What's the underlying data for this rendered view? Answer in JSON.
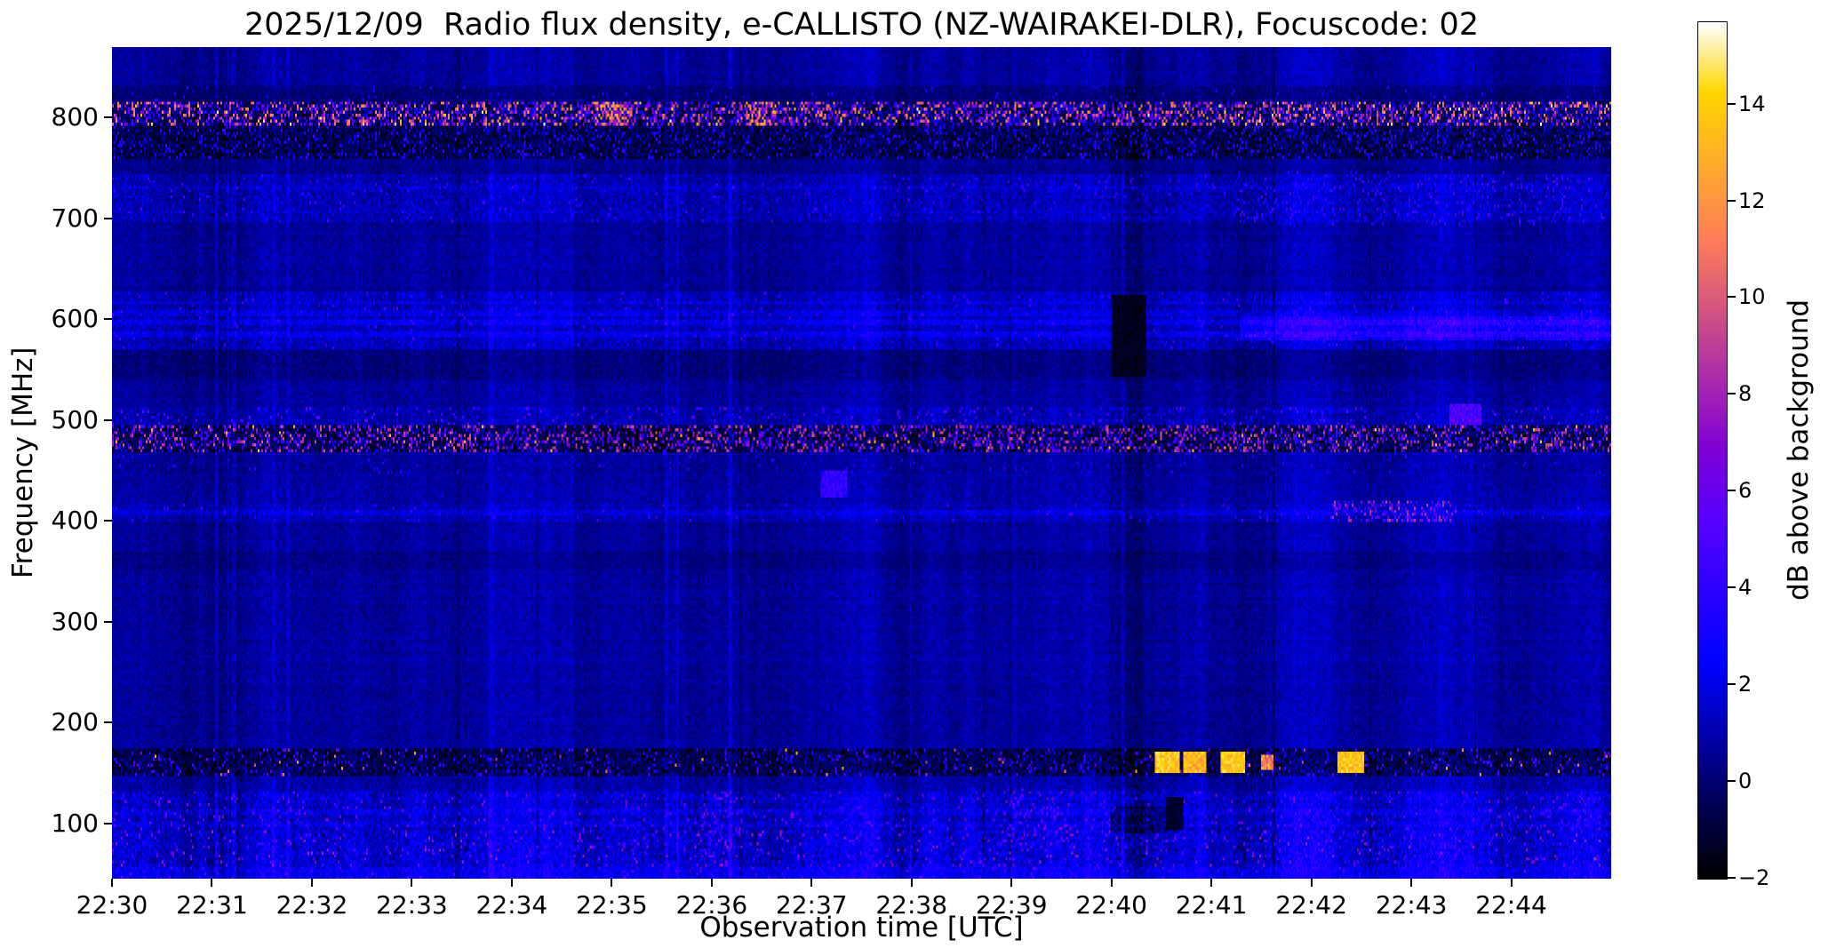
{
  "chart_data": {
    "type": "heatmap",
    "title": "2025/12/09  Radio flux density, e-CALLISTO (NZ-WAIRAKEI-DLR), Focuscode: 02",
    "xlabel": "Observation time [UTC]",
    "ylabel": "Frequency [MHz]",
    "x_range_minutes": [
      0,
      15
    ],
    "x_start_label": "22:30",
    "x_ticks": [
      {
        "label": "22:30",
        "t": 0
      },
      {
        "label": "22:31",
        "t": 1
      },
      {
        "label": "22:32",
        "t": 2
      },
      {
        "label": "22:33",
        "t": 3
      },
      {
        "label": "22:34",
        "t": 4
      },
      {
        "label": "22:35",
        "t": 5
      },
      {
        "label": "22:36",
        "t": 6
      },
      {
        "label": "22:37",
        "t": 7
      },
      {
        "label": "22:38",
        "t": 8
      },
      {
        "label": "22:39",
        "t": 9
      },
      {
        "label": "22:40",
        "t": 10
      },
      {
        "label": "22:41",
        "t": 11
      },
      {
        "label": "22:42",
        "t": 12
      },
      {
        "label": "22:43",
        "t": 13
      },
      {
        "label": "22:44",
        "t": 14
      }
    ],
    "y_range_mhz": [
      45,
      870
    ],
    "y_ticks": [
      {
        "label": "800",
        "f": 800
      },
      {
        "label": "700",
        "f": 700
      },
      {
        "label": "600",
        "f": 600
      },
      {
        "label": "500",
        "f": 500
      },
      {
        "label": "400",
        "f": 400
      },
      {
        "label": "300",
        "f": 300
      },
      {
        "label": "200",
        "f": 200
      },
      {
        "label": "100",
        "f": 100
      }
    ],
    "colorbar": {
      "label": "dB above background",
      "colormap": "gnuplot2",
      "vmin": -2,
      "vmax": 15.7,
      "ticks": [
        {
          "label": "14",
          "v": 14
        },
        {
          "label": "12",
          "v": 12
        },
        {
          "label": "10",
          "v": 10
        },
        {
          "label": "8",
          "v": 8
        },
        {
          "label": "6",
          "v": 6
        },
        {
          "label": "4",
          "v": 4
        },
        {
          "label": "2",
          "v": 2
        },
        {
          "label": "0",
          "v": 0
        },
        {
          "label": "−2",
          "v": -2
        }
      ]
    },
    "background_db": 0.75,
    "bands": [
      {
        "f": [
          815,
          832
        ],
        "add": -0.6,
        "sigma": 0.6,
        "sens": 0.6,
        "speckle_p": 0.03,
        "speckle": [
          1,
          4
        ]
      },
      {
        "f": [
          793,
          815
        ],
        "add": -0.6,
        "sigma": 1.3,
        "sens": 0.4,
        "speckle_p": 0.4,
        "speckle": [
          2,
          12
        ],
        "dark_p": 0.28,
        "dark": [
          -2,
          -0.6
        ],
        "hot_p": 0.018,
        "hot": [
          12,
          15.5
        ]
      },
      {
        "f": [
          760,
          793
        ],
        "add": -1.1,
        "sigma": 0.9,
        "sens": 0.6,
        "speckle_p": 0.14,
        "speckle": [
          1,
          5
        ],
        "dark_p": 0.22,
        "dark": [
          -2,
          -1
        ]
      },
      {
        "f": [
          745,
          760
        ],
        "add": -0.3,
        "sigma": 0.6,
        "sens": 0.8
      },
      {
        "f": [
          695,
          745
        ],
        "add": 0.45,
        "sigma": 0.8,
        "sens": 1.1,
        "speckle_p": 0.04,
        "speckle": [
          2,
          5
        ]
      },
      {
        "f": [
          628,
          695
        ],
        "add": 0.05,
        "sigma": 0.55,
        "sens": 0.9
      },
      {
        "f": [
          570,
          628
        ],
        "add": 0.6,
        "sigma": 0.8,
        "sens": 1.2,
        "speckle_p": 0.03,
        "speckle": [
          2,
          5
        ]
      },
      {
        "f": [
          540,
          570
        ],
        "add": -0.45,
        "sigma": 0.55,
        "sens": 0.8
      },
      {
        "f": [
          512,
          540
        ],
        "add": 0.05,
        "sigma": 0.55,
        "sens": 0.9
      },
      {
        "f": [
          494,
          512
        ],
        "add": 0.35,
        "sigma": 0.8,
        "sens": 1.0,
        "speckle_p": 0.06,
        "speckle": [
          2,
          6
        ]
      },
      {
        "f": [
          468,
          494
        ],
        "add": -0.9,
        "sigma": 1.1,
        "sens": 0.5,
        "speckle_p": 0.3,
        "speckle": [
          2,
          10
        ],
        "dark_p": 0.3,
        "dark": [
          -2,
          -0.8
        ],
        "hot_p": 0.01,
        "hot": [
          10,
          14
        ]
      },
      {
        "f": [
          448,
          468
        ],
        "add": 0.0,
        "sigma": 0.6,
        "sens": 0.9,
        "speckle_p": 0.02,
        "speckle": [
          2,
          4
        ]
      },
      {
        "f": [
          418,
          448
        ],
        "add": 0.15,
        "sigma": 0.6,
        "sens": 0.9
      },
      {
        "f": [
          398,
          418
        ],
        "add": 0.45,
        "sigma": 0.7,
        "sens": 1.0,
        "speckle_p": 0.03,
        "speckle": [
          2,
          5
        ]
      },
      {
        "f": [
          352,
          370
        ],
        "add": -0.35,
        "sigma": 0.5,
        "sens": 0.8
      },
      {
        "f": [
          175,
          352
        ],
        "add": 0.05,
        "sigma": 0.55,
        "sens": 0.9
      },
      {
        "f": [
          148,
          175
        ],
        "add": -1.0,
        "sigma": 0.9,
        "sens": 0.8,
        "speckle_p": 0.1,
        "speckle": [
          1,
          6
        ],
        "dark_p": 0.25,
        "dark": [
          -2,
          -1
        ],
        "hot_p": 0.006,
        "hot": [
          8,
          13
        ]
      },
      {
        "f": [
          132,
          148
        ],
        "add": 0.25,
        "sigma": 0.7,
        "sens": 1.2
      },
      {
        "f": [
          92,
          132
        ],
        "add": 0.8,
        "sigma": 1.0,
        "sens": 1.6,
        "speckle_p": 0.05,
        "speckle": [
          3,
          7
        ]
      },
      {
        "f": [
          56,
          92
        ],
        "add": 1.1,
        "sigma": 1.1,
        "sens": 1.8,
        "speckle_p": 0.06,
        "speckle": [
          3,
          8
        ]
      },
      {
        "f": [
          45,
          56
        ],
        "add": 1.7,
        "sigma": 0.9,
        "sens": 1.5,
        "speckle_p": 0.04,
        "speckle": [
          3,
          6
        ]
      }
    ],
    "sub_lines": [
      {
        "f": 585,
        "w": 3,
        "add": 0.9
      },
      {
        "f": 596,
        "w": 3,
        "add": 1.0
      },
      {
        "f": 606,
        "w": 2,
        "add": 0.7
      },
      {
        "f": 617,
        "w": 2,
        "add": 0.6
      },
      {
        "f": 409,
        "w": 3,
        "add": 0.7
      },
      {
        "f": 100,
        "w": 3,
        "add": 0.5
      },
      {
        "f": 112,
        "w": 3,
        "add": 0.6
      },
      {
        "f": 125,
        "w": 2,
        "add": 0.4
      },
      {
        "f": 730,
        "w": 2,
        "add": 0.4
      },
      {
        "f": 707,
        "w": 2,
        "add": 0.4
      },
      {
        "f": 262,
        "w": 2,
        "add": 0.3
      }
    ],
    "events": [
      {
        "t": [
          10.0,
          10.3
        ],
        "f": [
          45,
          870
        ],
        "mode": "add",
        "v": -0.5,
        "jitter": 0.2
      },
      {
        "t": [
          10.02,
          10.34
        ],
        "f": [
          543,
          624
        ],
        "mode": "set",
        "v": -1.5,
        "jitter": 0.45
      },
      {
        "t": [
          10.0,
          10.55
        ],
        "f": [
          90,
          116
        ],
        "mode": "add",
        "v": -1.3,
        "jitter": 0.3
      },
      {
        "t": [
          10.45,
          10.68
        ],
        "f": [
          152,
          170
        ],
        "mode": "max",
        "v": 13.8,
        "jitter": 1.2
      },
      {
        "t": [
          10.72,
          10.94
        ],
        "f": [
          152,
          170
        ],
        "mode": "max",
        "v": 13.2,
        "jitter": 1.5
      },
      {
        "t": [
          11.1,
          11.33
        ],
        "f": [
          152,
          170
        ],
        "mode": "max",
        "v": 13.8,
        "jitter": 1.2
      },
      {
        "t": [
          11.5,
          11.62
        ],
        "f": [
          154,
          168
        ],
        "mode": "max",
        "v": 11.5,
        "jitter": 2
      },
      {
        "t": [
          12.28,
          12.52
        ],
        "f": [
          152,
          170
        ],
        "mode": "max",
        "v": 13.5,
        "jitter": 1.3
      },
      {
        "t": [
          12.2,
          13.45
        ],
        "f": [
          400,
          418
        ],
        "mode": "speckle",
        "p": 0.3,
        "range": [
          3,
          9
        ]
      },
      {
        "t": [
          7.1,
          7.35
        ],
        "f": [
          424,
          449
        ],
        "mode": "max",
        "v": 4,
        "jitter": 1.2
      },
      {
        "t": [
          11.3,
          15.0
        ],
        "f": [
          582,
          601
        ],
        "mode": "add",
        "v": 1.6,
        "jitter": 0.6
      },
      {
        "t": [
          4.85,
          5.2
        ],
        "f": [
          793,
          814
        ],
        "mode": "speckle",
        "p": 0.5,
        "range": [
          5,
          14
        ]
      },
      {
        "t": [
          6.35,
          6.65
        ],
        "f": [
          793,
          814
        ],
        "mode": "speckle",
        "p": 0.5,
        "range": [
          5,
          14
        ]
      },
      {
        "t": [
          8.9,
          9.6
        ],
        "f": [
          75,
          135
        ],
        "mode": "speckle",
        "p": 0.15,
        "range": [
          3,
          7
        ]
      },
      {
        "t": [
          5.9,
          6.3
        ],
        "f": [
          60,
          130
        ],
        "mode": "speckle",
        "p": 0.12,
        "range": [
          3,
          7
        ]
      },
      {
        "t": [
          14.2,
          14.9
        ],
        "f": [
          95,
          130
        ],
        "mode": "speckle",
        "p": 0.1,
        "range": [
          3,
          6
        ]
      },
      {
        "t": [
          10.55,
          10.7
        ],
        "f": [
          95,
          125
        ],
        "mode": "set",
        "v": -1.2,
        "jitter": 0.5
      },
      {
        "t": [
          4.9,
          5.6
        ],
        "f": [
          470,
          492
        ],
        "mode": "add",
        "v": -0.7,
        "jitter": 0.2
      },
      {
        "t": [
          13.4,
          13.7
        ],
        "f": [
          495,
          515
        ],
        "mode": "max",
        "v": 5,
        "jitter": 1.5
      },
      {
        "t": [
          11.2,
          14.6
        ],
        "f": [
          695,
          745
        ],
        "mode": "speckle",
        "p": 0.08,
        "range": [
          2,
          5
        ]
      }
    ],
    "render": {
      "seed": 1337,
      "cols": 844,
      "rows": 275,
      "col_smooth": 0.92,
      "col_noise": 0.25,
      "streak_p": 0.018,
      "streak_amp": [
        0.6,
        1.8
      ],
      "dark_streak_p": 0.01,
      "dark_streak_amp": [
        0.5,
        1.3
      ]
    }
  }
}
